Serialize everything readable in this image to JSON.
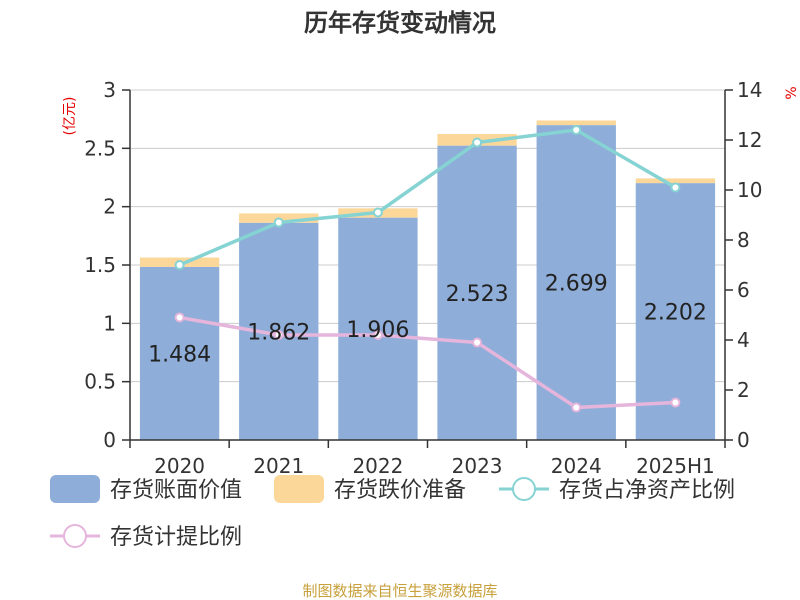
{
  "title": "历年存货变动情况",
  "source": "制图数据来自恒生聚源数据库",
  "left_unit": "(亿元)",
  "right_unit": "%",
  "colors": {
    "book": "#8eadd8",
    "reserve": "#fbd79a",
    "ratio_net": "#86d3d3",
    "ratio_reserve": "#e5b5dc",
    "axis": "#333333",
    "grid": "#cccccc"
  },
  "chart_data": {
    "type": "bar",
    "categories": [
      "2020",
      "2021",
      "2022",
      "2023",
      "2024",
      "2025H1"
    ],
    "stacked": true,
    "ylim": [
      0,
      3
    ],
    "yticks": [
      "0",
      "0.5",
      "1",
      "1.5",
      "2",
      "2.5",
      "3"
    ],
    "y2lim": [
      0,
      14
    ],
    "y2ticks": [
      "0",
      "2",
      "4",
      "6",
      "8",
      "10",
      "12",
      "14"
    ],
    "series": [
      {
        "name": "存货账面价值",
        "type": "bar",
        "axis": "left",
        "values": [
          1.484,
          1.862,
          1.906,
          2.523,
          2.699,
          2.202
        ],
        "labels": [
          "1.484",
          "1.862",
          "1.906",
          "2.523",
          "2.699",
          "2.202"
        ]
      },
      {
        "name": "存货跌价准备",
        "type": "bar",
        "axis": "left",
        "values": [
          0.08,
          0.08,
          0.08,
          0.1,
          0.04,
          0.04
        ]
      },
      {
        "name": "存货占净资产比例",
        "type": "line",
        "axis": "right",
        "values": [
          7.0,
          8.7,
          9.1,
          11.9,
          12.4,
          10.1
        ]
      },
      {
        "name": "存货计提比例",
        "type": "line",
        "axis": "right",
        "values": [
          4.9,
          4.2,
          4.2,
          3.9,
          1.3,
          1.5
        ]
      }
    ],
    "grid": true,
    "legend_position": "bottom"
  }
}
